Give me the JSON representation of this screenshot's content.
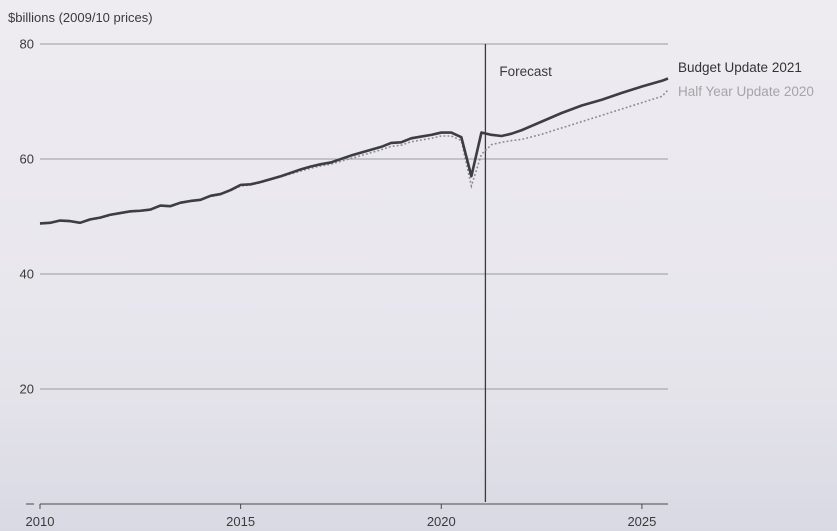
{
  "chart_data": {
    "type": "line",
    "title": "",
    "ylabel": "$billions (2009/10 prices)",
    "xlabel": "",
    "xlim": [
      2010,
      2025.65
    ],
    "ylim": [
      0,
      80
    ],
    "x_ticks": [
      2010,
      2015,
      2020,
      2025
    ],
    "y_ticks": [
      20,
      40,
      60,
      80
    ],
    "grid": true,
    "legend": "right, at line ends",
    "annotation": {
      "text": "Forecast",
      "x": 2021.1
    },
    "series": [
      {
        "name": "Budget Update 2021",
        "color": "#3d3d44",
        "style": "solid",
        "x": [
          2010,
          2010.25,
          2010.5,
          2010.75,
          2011,
          2011.25,
          2011.5,
          2011.75,
          2012,
          2012.25,
          2012.5,
          2012.75,
          2013,
          2013.25,
          2013.5,
          2013.75,
          2014,
          2014.25,
          2014.5,
          2014.75,
          2015,
          2015.25,
          2015.5,
          2015.75,
          2016,
          2016.25,
          2016.5,
          2016.75,
          2017,
          2017.25,
          2017.5,
          2017.75,
          2018,
          2018.25,
          2018.5,
          2018.75,
          2019,
          2019.25,
          2019.5,
          2019.75,
          2020,
          2020.25,
          2020.5,
          2020.75,
          2021,
          2021.25,
          2021.5,
          2021.75,
          2022,
          2022.5,
          2023,
          2023.5,
          2024,
          2024.5,
          2025,
          2025.5,
          2025.65
        ],
        "values": [
          48.8,
          48.9,
          49.3,
          49.2,
          48.9,
          49.5,
          49.8,
          50.3,
          50.6,
          50.9,
          51.0,
          51.2,
          51.9,
          51.8,
          52.4,
          52.7,
          52.9,
          53.6,
          53.9,
          54.6,
          55.5,
          55.6,
          56.0,
          56.5,
          57.0,
          57.6,
          58.2,
          58.7,
          59.1,
          59.4,
          60.0,
          60.6,
          61.1,
          61.6,
          62.1,
          62.8,
          62.9,
          63.6,
          63.9,
          64.2,
          64.6,
          64.6,
          63.8,
          57.0,
          64.6,
          64.2,
          64.0,
          64.4,
          65.0,
          66.5,
          68.0,
          69.3,
          70.3,
          71.5,
          72.6,
          73.6,
          74.0
        ]
      },
      {
        "name": "Half Year Update 2020",
        "color": "#8a8a8e",
        "style": "dotted",
        "x": [
          2010,
          2010.25,
          2010.5,
          2010.75,
          2011,
          2011.25,
          2011.5,
          2011.75,
          2012,
          2012.25,
          2012.5,
          2012.75,
          2013,
          2013.25,
          2013.5,
          2013.75,
          2014,
          2014.25,
          2014.5,
          2014.75,
          2015,
          2015.25,
          2015.5,
          2015.75,
          2016,
          2016.25,
          2016.5,
          2016.75,
          2017,
          2017.25,
          2017.5,
          2017.75,
          2018,
          2018.25,
          2018.5,
          2018.75,
          2019,
          2019.25,
          2019.5,
          2019.75,
          2020,
          2020.25,
          2020.5,
          2020.75,
          2021,
          2021.25,
          2021.5,
          2021.75,
          2022,
          2022.5,
          2023,
          2023.5,
          2024,
          2024.5,
          2025,
          2025.5,
          2025.65
        ],
        "values": [
          48.7,
          48.9,
          49.2,
          49.1,
          48.9,
          49.4,
          49.7,
          50.2,
          50.5,
          50.8,
          50.9,
          51.1,
          51.8,
          51.7,
          52.3,
          52.6,
          52.8,
          53.5,
          53.8,
          54.5,
          55.3,
          55.5,
          55.9,
          56.4,
          56.9,
          57.4,
          57.9,
          58.4,
          58.8,
          59.1,
          59.6,
          60.1,
          60.6,
          61.1,
          61.6,
          62.2,
          62.4,
          63.0,
          63.3,
          63.6,
          64.0,
          64.0,
          63.2,
          55.3,
          60.8,
          62.5,
          62.9,
          63.2,
          63.4,
          64.3,
          65.4,
          66.5,
          67.6,
          68.7,
          69.8,
          70.9,
          72.0
        ]
      }
    ]
  }
}
